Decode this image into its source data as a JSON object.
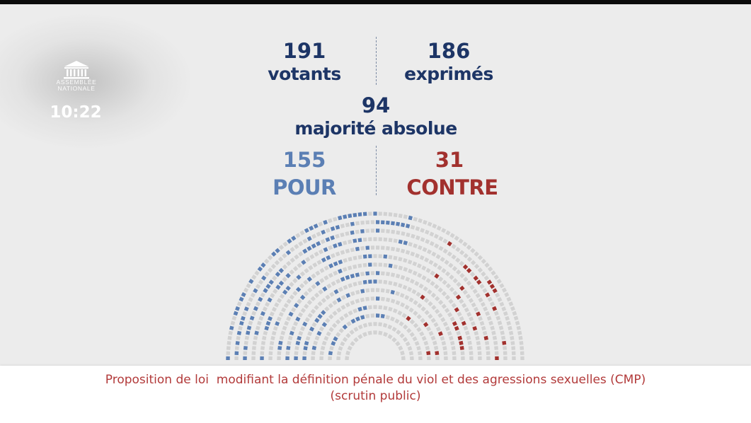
{
  "broadcast": {
    "logo": {
      "line1": "ASSEMBLÉE",
      "line2": "NATIONALE"
    },
    "time": "10:22"
  },
  "scrutin": {
    "votants": {
      "value": "191",
      "label": "votants"
    },
    "exprimes": {
      "value": "186",
      "label": "exprimés"
    },
    "majorite": {
      "value": "94",
      "label": "majorité absolue"
    },
    "pour": {
      "value": "155",
      "label": "POUR"
    },
    "contre": {
      "value": "31",
      "label": "CONTRE"
    }
  },
  "hemicycle": {
    "seat_counts": {
      "pour": 155,
      "contre": 31
    },
    "colors": {
      "pour": "#5b7fb4",
      "contre": "#a2312e",
      "empty": "#d2d2d2"
    }
  },
  "footer": {
    "line1": "Proposition de loi  modifiant la définition pénale du viol et des agressions sexuelles (CMP)",
    "line2": "(scrutin public)"
  }
}
